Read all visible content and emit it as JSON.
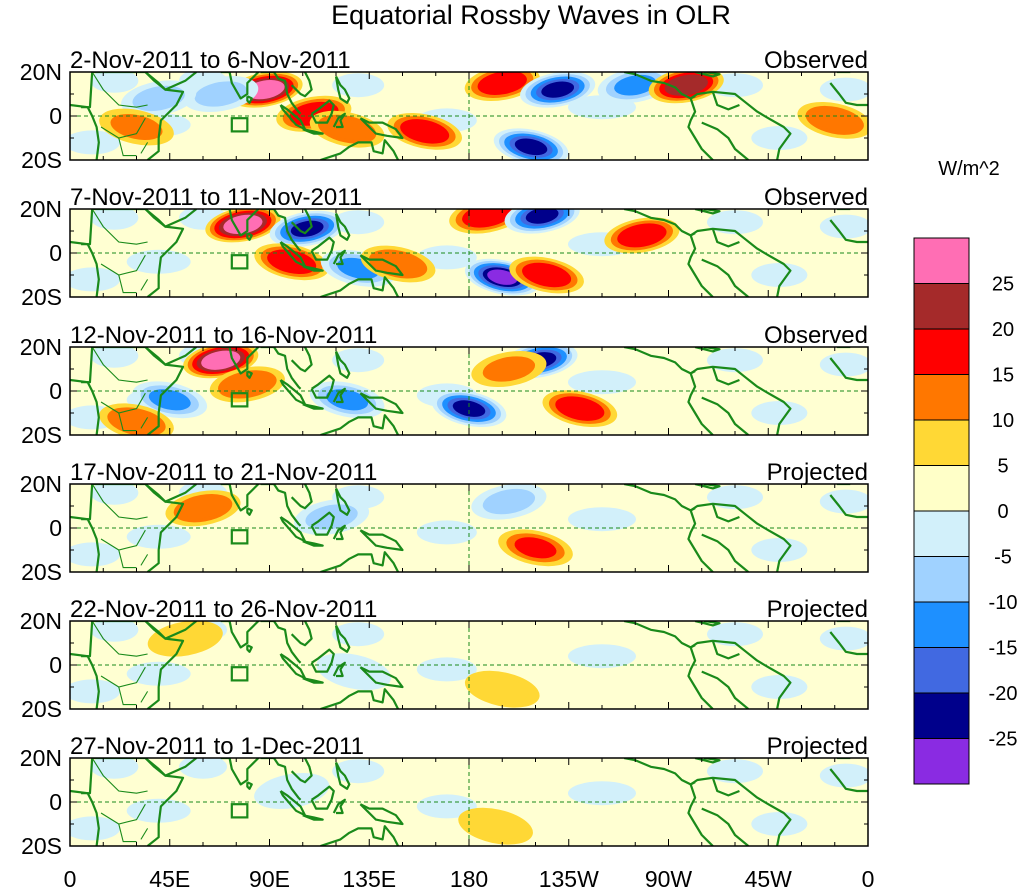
{
  "chart_data": {
    "type": "heatmap",
    "title": "Equatorial Rossby Waves in OLR",
    "units": "W/m^2",
    "x_ticks": [
      "0",
      "45E",
      "90E",
      "135E",
      "180",
      "135W",
      "90W",
      "45W",
      "0"
    ],
    "y_ticks": [
      "20N",
      "0",
      "20S"
    ],
    "legend": {
      "labels": [
        "25",
        "20",
        "15",
        "10",
        "5",
        "0",
        "-5",
        "-10",
        "-15",
        "-20",
        "-25"
      ],
      "colors": [
        "#ff6eb4",
        "#a52a2a",
        "#ff0000",
        "#ff7700",
        "#ffd835",
        "#ffffc8",
        "#d2f0fa",
        "#a0d2ff",
        "#1e90ff",
        "#4169e1",
        "#00008b",
        "#8a2be2"
      ]
    },
    "panels": [
      {
        "period": "2-Nov-2011 to 6-Nov-2011",
        "status": "Observed",
        "anomalies": [
          {
            "lon": 88,
            "lat": 12,
            "value": 30
          },
          {
            "lon": 68,
            "lat": 10,
            "value": -10
          },
          {
            "lon": 110,
            "lat": 1,
            "value": 18
          },
          {
            "lon": 125,
            "lat": -6,
            "value": 12
          },
          {
            "lon": 40,
            "lat": 8,
            "value": -10
          },
          {
            "lon": 30,
            "lat": -5,
            "value": 10
          },
          {
            "lon": 195,
            "lat": 15,
            "value": 18
          },
          {
            "lon": 220,
            "lat": 12,
            "value": -22
          },
          {
            "lon": 160,
            "lat": -7,
            "value": 17
          },
          {
            "lon": 208,
            "lat": -14,
            "value": -24
          },
          {
            "lon": 255,
            "lat": 14,
            "value": -12
          },
          {
            "lon": 278,
            "lat": 14,
            "value": 22
          },
          {
            "lon": 345,
            "lat": -2,
            "value": 12
          }
        ]
      },
      {
        "period": "7-Nov-2011 to 11-Nov-2011",
        "status": "Observed",
        "anomalies": [
          {
            "lon": 78,
            "lat": 13,
            "value": 30
          },
          {
            "lon": 107,
            "lat": 11,
            "value": -22
          },
          {
            "lon": 100,
            "lat": -4,
            "value": 17
          },
          {
            "lon": 130,
            "lat": -7,
            "value": -13
          },
          {
            "lon": 188,
            "lat": 17,
            "value": 18
          },
          {
            "lon": 213,
            "lat": 17,
            "value": -24
          },
          {
            "lon": 195,
            "lat": -11,
            "value": -26
          },
          {
            "lon": 215,
            "lat": -10,
            "value": 17
          },
          {
            "lon": 148,
            "lat": -5,
            "value": 12
          },
          {
            "lon": 258,
            "lat": 8,
            "value": 18
          }
        ]
      },
      {
        "period": "12-Nov-2011 to 16-Nov-2011",
        "status": "Observed",
        "anomalies": [
          {
            "lon": 68,
            "lat": 14,
            "value": 26
          },
          {
            "lon": 80,
            "lat": 3,
            "value": 12
          },
          {
            "lon": 45,
            "lat": -4,
            "value": -11
          },
          {
            "lon": 230,
            "lat": -8,
            "value": 18
          },
          {
            "lon": 212,
            "lat": 14,
            "value": -22
          },
          {
            "lon": 180,
            "lat": -8,
            "value": -24
          },
          {
            "lon": 198,
            "lat": 10,
            "value": 10
          },
          {
            "lon": 125,
            "lat": -4,
            "value": -14
          },
          {
            "lon": 30,
            "lat": -14,
            "value": 12
          }
        ]
      },
      {
        "period": "17-Nov-2011 to 21-Nov-2011",
        "status": "Projected",
        "anomalies": [
          {
            "lon": 60,
            "lat": 9,
            "value": 12
          },
          {
            "lon": 210,
            "lat": -9,
            "value": 15
          },
          {
            "lon": 118,
            "lat": 5,
            "value": -7
          },
          {
            "lon": 198,
            "lat": 12,
            "value": -7
          }
        ]
      },
      {
        "period": "22-Nov-2011 to 26-Nov-2011",
        "status": "Projected",
        "anomalies": [
          {
            "lon": 52,
            "lat": 12,
            "value": 8
          },
          {
            "lon": 195,
            "lat": -11,
            "value": 6
          },
          {
            "lon": 128,
            "lat": -3,
            "value": -5
          }
        ]
      },
      {
        "period": "27-Nov-2011 to 1-Dec-2011",
        "status": "Projected",
        "anomalies": [
          {
            "lon": 192,
            "lat": -11,
            "value": 6
          },
          {
            "lon": 100,
            "lat": 5,
            "value": -4
          }
        ]
      }
    ]
  }
}
